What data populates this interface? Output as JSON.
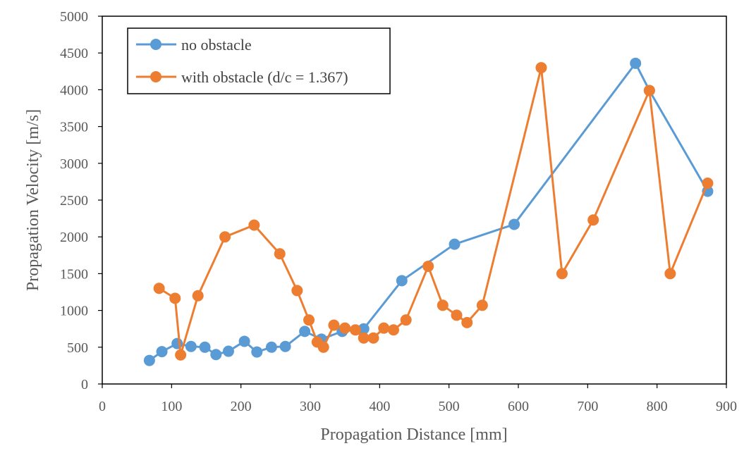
{
  "chart_data": {
    "type": "line",
    "title": "",
    "xlabel": "Propagation Distance [mm]",
    "ylabel": "Propagation Velocity [m/s]",
    "xlim": [
      0,
      900
    ],
    "ylim": [
      0,
      5000
    ],
    "x_ticks": [
      0,
      100,
      200,
      300,
      400,
      500,
      600,
      700,
      800,
      900
    ],
    "y_ticks": [
      0,
      500,
      1000,
      1500,
      2000,
      2500,
      3000,
      3500,
      4000,
      4500,
      5000
    ],
    "grid": false,
    "legend_position": "top-left",
    "series": [
      {
        "name": "no obstacle",
        "color": "#5B9BD5",
        "points": [
          {
            "x": 68,
            "y": 320
          },
          {
            "x": 86,
            "y": 440
          },
          {
            "x": 108,
            "y": 550
          },
          {
            "x": 128,
            "y": 510
          },
          {
            "x": 148,
            "y": 500
          },
          {
            "x": 164,
            "y": 400
          },
          {
            "x": 182,
            "y": 445
          },
          {
            "x": 205,
            "y": 580
          },
          {
            "x": 223,
            "y": 435
          },
          {
            "x": 244,
            "y": 500
          },
          {
            "x": 264,
            "y": 510
          },
          {
            "x": 292,
            "y": 715
          },
          {
            "x": 316,
            "y": 610
          },
          {
            "x": 346,
            "y": 715
          },
          {
            "x": 377,
            "y": 750
          },
          {
            "x": 432,
            "y": 1405
          },
          {
            "x": 508,
            "y": 1900
          },
          {
            "x": 594,
            "y": 2170
          },
          {
            "x": 769,
            "y": 4360
          },
          {
            "x": 789,
            "y": 3990
          },
          {
            "x": 873,
            "y": 2620
          }
        ]
      },
      {
        "name": "with obstacle (d/c = 1.367)",
        "color": "#ED7D31",
        "points": [
          {
            "x": 82,
            "y": 1300
          },
          {
            "x": 105,
            "y": 1165
          },
          {
            "x": 113,
            "y": 395
          },
          {
            "x": 138,
            "y": 1200
          },
          {
            "x": 177,
            "y": 2000
          },
          {
            "x": 219,
            "y": 2160
          },
          {
            "x": 256,
            "y": 1770
          },
          {
            "x": 281,
            "y": 1270
          },
          {
            "x": 298,
            "y": 870
          },
          {
            "x": 310,
            "y": 570
          },
          {
            "x": 319,
            "y": 500
          },
          {
            "x": 334,
            "y": 800
          },
          {
            "x": 350,
            "y": 760
          },
          {
            "x": 365,
            "y": 735
          },
          {
            "x": 377,
            "y": 625
          },
          {
            "x": 391,
            "y": 625
          },
          {
            "x": 406,
            "y": 760
          },
          {
            "x": 420,
            "y": 735
          },
          {
            "x": 438,
            "y": 870
          },
          {
            "x": 470,
            "y": 1600
          },
          {
            "x": 491,
            "y": 1070
          },
          {
            "x": 511,
            "y": 935
          },
          {
            "x": 526,
            "y": 835
          },
          {
            "x": 548,
            "y": 1070
          },
          {
            "x": 633,
            "y": 4300
          },
          {
            "x": 663,
            "y": 1500
          },
          {
            "x": 708,
            "y": 2230
          },
          {
            "x": 789,
            "y": 3990
          },
          {
            "x": 819,
            "y": 1500
          },
          {
            "x": 873,
            "y": 2730
          }
        ]
      }
    ]
  }
}
